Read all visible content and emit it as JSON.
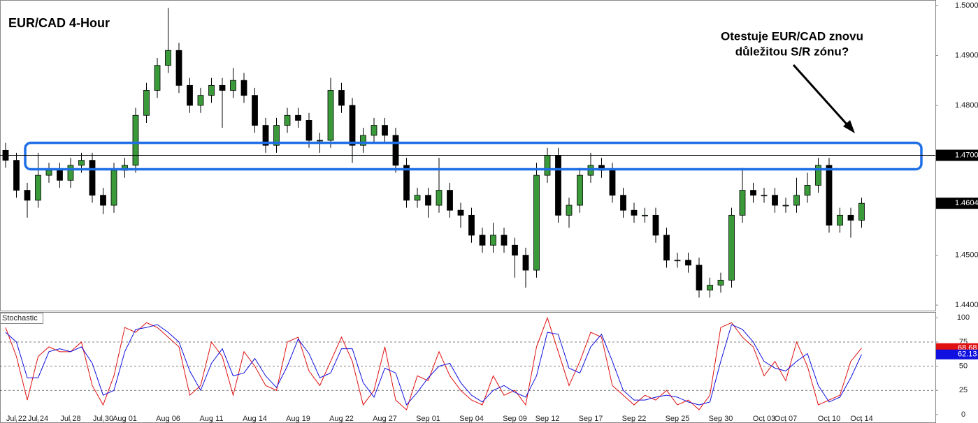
{
  "chart_data": [
    {
      "type": "candlestick",
      "title": "EUR/CAD 4-Hour",
      "annotation": [
        "Otestuje EUR/CAD znovu",
        "důležitou S/R zónu?"
      ],
      "up_color": "#3a9a3a",
      "down_color": "#000000",
      "ylim": [
        1.4389,
        1.5011
      ],
      "yticks": [
        {
          "value": 1.44,
          "label": "1.4400"
        },
        {
          "value": 1.45,
          "label": "1.4500"
        },
        {
          "value": 1.46,
          "label": "1.4600"
        },
        {
          "value": 1.47,
          "label": "1.4700"
        },
        {
          "value": 1.48,
          "label": "1.4800"
        },
        {
          "value": 1.49,
          "label": "1.4900"
        },
        {
          "value": 1.5,
          "label": "1.5000"
        }
      ],
      "price_lines": [
        {
          "value": 1.47,
          "label": "1.4700"
        }
      ],
      "zone": [
        1.4672,
        1.4725
      ],
      "zone_color": "#1e6fe6",
      "categories": [
        null,
        "Jul 22",
        null,
        "Jul 24",
        null,
        null,
        "Jul 28",
        null,
        null,
        "Jul 30",
        null,
        "Aug 01",
        null,
        null,
        null,
        "Aug 06",
        null,
        null,
        null,
        "Aug 11",
        null,
        null,
        null,
        "Aug 14",
        null,
        null,
        null,
        "Aug 19",
        null,
        null,
        null,
        "Aug 22",
        null,
        null,
        null,
        "Aug 27",
        null,
        null,
        null,
        "Sep 01",
        null,
        null,
        null,
        "Sep 04",
        null,
        null,
        null,
        "Sep 09",
        null,
        null,
        "Sep 12",
        null,
        null,
        null,
        "Sep 17",
        null,
        null,
        null,
        "Sep 22",
        null,
        null,
        null,
        "Sep 25",
        null,
        null,
        null,
        "Sep 30",
        null,
        null,
        null,
        "Oct 03",
        null,
        "Oct 07",
        null,
        null,
        null,
        "Oct 10",
        null,
        null,
        "Oct 14"
      ],
      "candles": [
        [
          1.471,
          1.4725,
          1.4675,
          1.469
        ],
        [
          1.469,
          1.4705,
          1.4615,
          1.463
        ],
        [
          1.463,
          1.4645,
          1.4575,
          1.461
        ],
        [
          1.461,
          1.4705,
          1.4595,
          1.466
        ],
        [
          1.466,
          1.4685,
          1.4645,
          1.467
        ],
        [
          1.467,
          1.4685,
          1.4635,
          1.465
        ],
        [
          1.465,
          1.4695,
          1.4635,
          1.468
        ],
        [
          1.468,
          1.4705,
          1.4665,
          1.469
        ],
        [
          1.469,
          1.4705,
          1.4605,
          1.462
        ],
        [
          1.462,
          1.4635,
          1.4582,
          1.46
        ],
        [
          1.46,
          1.4685,
          1.4585,
          1.467
        ],
        [
          1.467,
          1.4695,
          1.4655,
          1.468
        ],
        [
          1.468,
          1.4795,
          1.4665,
          1.478
        ],
        [
          1.478,
          1.4845,
          1.4765,
          1.483
        ],
        [
          1.483,
          1.4895,
          1.4815,
          1.488
        ],
        [
          1.488,
          1.4995,
          1.4865,
          1.491
        ],
        [
          1.491,
          1.4925,
          1.4825,
          1.484
        ],
        [
          1.484,
          1.4855,
          1.4785,
          1.48
        ],
        [
          1.48,
          1.4835,
          1.4785,
          1.482
        ],
        [
          1.482,
          1.4855,
          1.4805,
          1.484
        ],
        [
          1.484,
          1.4855,
          1.4755,
          1.483
        ],
        [
          1.483,
          1.4875,
          1.4815,
          1.485
        ],
        [
          1.485,
          1.4865,
          1.4805,
          1.482
        ],
        [
          1.482,
          1.4835,
          1.4745,
          1.476
        ],
        [
          1.476,
          1.4775,
          1.4705,
          1.472
        ],
        [
          1.472,
          1.4775,
          1.4705,
          1.476
        ],
        [
          1.476,
          1.4795,
          1.4745,
          1.478
        ],
        [
          1.478,
          1.4795,
          1.4755,
          1.477
        ],
        [
          1.477,
          1.4785,
          1.4715,
          1.473
        ],
        [
          1.473,
          1.4745,
          1.4705,
          1.473
        ],
        [
          1.473,
          1.4855,
          1.4715,
          1.483
        ],
        [
          1.483,
          1.4845,
          1.4785,
          1.48
        ],
        [
          1.48,
          1.4815,
          1.4685,
          1.472
        ],
        [
          1.472,
          1.4755,
          1.4705,
          1.474
        ],
        [
          1.474,
          1.4775,
          1.4725,
          1.476
        ],
        [
          1.476,
          1.4775,
          1.4725,
          1.474
        ],
        [
          1.474,
          1.4755,
          1.4665,
          1.468
        ],
        [
          1.468,
          1.4695,
          1.4595,
          1.461
        ],
        [
          1.461,
          1.4635,
          1.4595,
          1.462
        ],
        [
          1.462,
          1.4635,
          1.4575,
          1.46
        ],
        [
          1.46,
          1.4695,
          1.4585,
          1.463
        ],
        [
          1.463,
          1.4645,
          1.4575,
          1.459
        ],
        [
          1.459,
          1.4605,
          1.4555,
          1.458
        ],
        [
          1.458,
          1.4595,
          1.4525,
          1.454
        ],
        [
          1.454,
          1.4555,
          1.4505,
          1.452
        ],
        [
          1.452,
          1.4565,
          1.4505,
          1.454
        ],
        [
          1.454,
          1.4555,
          1.4505,
          1.452
        ],
        [
          1.452,
          1.4535,
          1.4455,
          1.45
        ],
        [
          1.45,
          1.4515,
          1.4435,
          1.447
        ],
        [
          1.447,
          1.4685,
          1.4455,
          1.466
        ],
        [
          1.466,
          1.4715,
          1.4645,
          1.47
        ],
        [
          1.47,
          1.4715,
          1.4565,
          1.458
        ],
        [
          1.458,
          1.4615,
          1.4555,
          1.46
        ],
        [
          1.46,
          1.4675,
          1.4585,
          1.466
        ],
        [
          1.466,
          1.4705,
          1.4645,
          1.468
        ],
        [
          1.468,
          1.4695,
          1.4655,
          1.467
        ],
        [
          1.467,
          1.4685,
          1.4605,
          1.462
        ],
        [
          1.462,
          1.4635,
          1.4575,
          1.459
        ],
        [
          1.459,
          1.4605,
          1.4565,
          1.458
        ],
        [
          1.458,
          1.4595,
          1.4565,
          1.458
        ],
        [
          1.458,
          1.4595,
          1.4525,
          1.454
        ],
        [
          1.454,
          1.4555,
          1.4475,
          1.449
        ],
        [
          1.449,
          1.4505,
          1.4475,
          1.449
        ],
        [
          1.449,
          1.4505,
          1.4465,
          1.448
        ],
        [
          1.448,
          1.4495,
          1.4415,
          1.443
        ],
        [
          1.443,
          1.4455,
          1.4415,
          1.444
        ],
        [
          1.444,
          1.4465,
          1.4425,
          1.445
        ],
        [
          1.445,
          1.4595,
          1.4435,
          1.458
        ],
        [
          1.458,
          1.4675,
          1.4565,
          1.463
        ],
        [
          1.463,
          1.4645,
          1.4605,
          1.462
        ],
        [
          1.462,
          1.4635,
          1.4605,
          1.462
        ],
        [
          1.462,
          1.4635,
          1.4585,
          1.46
        ],
        [
          1.46,
          1.4615,
          1.4585,
          1.46
        ],
        [
          1.46,
          1.4655,
          1.4585,
          1.462
        ],
        [
          1.462,
          1.4665,
          1.4605,
          1.464
        ],
        [
          1.464,
          1.4695,
          1.4625,
          1.468
        ],
        [
          1.468,
          1.4695,
          1.4545,
          1.456
        ],
        [
          1.456,
          1.4595,
          1.4545,
          1.458
        ],
        [
          1.458,
          1.4595,
          1.4535,
          1.457
        ],
        [
          1.457,
          1.4615,
          1.4555,
          1.4604
        ]
      ]
    },
    {
      "type": "line",
      "title": "Stochastic",
      "ylim": [
        -8,
        106
      ],
      "yticks": [
        0,
        25,
        50,
        75,
        100
      ],
      "levels": [
        25,
        50,
        75
      ],
      "series": [
        {
          "color": "#e01010",
          "values": [
            90,
            60,
            15,
            60,
            70,
            65,
            65,
            75,
            30,
            10,
            40,
            90,
            85,
            95,
            90,
            80,
            70,
            20,
            30,
            75,
            60,
            20,
            65,
            50,
            30,
            25,
            75,
            80,
            45,
            30,
            55,
            80,
            55,
            10,
            25,
            70,
            15,
            5,
            40,
            35,
            65,
            40,
            25,
            15,
            10,
            40,
            20,
            25,
            10,
            70,
            100,
            65,
            30,
            55,
            85,
            80,
            30,
            20,
            10,
            20,
            15,
            25,
            10,
            15,
            5,
            20,
            90,
            95,
            80,
            70,
            40,
            55,
            35,
            75,
            50,
            10,
            15,
            20,
            55,
            68.68
          ]
        },
        {
          "color": "#1010e0",
          "values": [
            85,
            75,
            38,
            38,
            65,
            68,
            65,
            70,
            53,
            20,
            25,
            65,
            88,
            90,
            93,
            85,
            75,
            45,
            25,
            53,
            68,
            40,
            43,
            58,
            40,
            28,
            50,
            78,
            63,
            38,
            43,
            68,
            68,
            33,
            18,
            48,
            43,
            10,
            23,
            38,
            50,
            53,
            33,
            20,
            13,
            25,
            30,
            23,
            18,
            40,
            85,
            83,
            48,
            43,
            70,
            83,
            55,
            25,
            15,
            15,
            18,
            20,
            18,
            13,
            10,
            13,
            55,
            93,
            88,
            75,
            55,
            48,
            45,
            55,
            63,
            30,
            13,
            18,
            38,
            62.13
          ]
        }
      ]
    }
  ]
}
